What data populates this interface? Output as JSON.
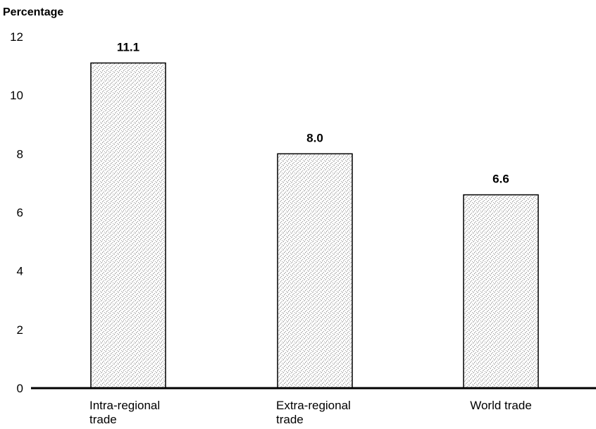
{
  "chart_data": {
    "type": "bar",
    "ylabel": "Percentage",
    "categories": [
      "Intra-regional trade",
      "Extra-regional trade",
      "World trade"
    ],
    "category_lines": [
      [
        "Intra-regional",
        "trade"
      ],
      [
        "Extra-regional",
        "trade"
      ],
      [
        "World trade"
      ]
    ],
    "values": [
      11.1,
      8.0,
      6.6
    ],
    "data_labels": [
      "11.1",
      "8.0",
      "6.6"
    ],
    "ylim": [
      0,
      12
    ],
    "yticks": [
      0,
      2,
      4,
      6,
      8,
      10,
      12
    ],
    "grid": false,
    "legend": "none",
    "bar_fill": "#b8b8b8",
    "bar_stroke": "#000000"
  }
}
